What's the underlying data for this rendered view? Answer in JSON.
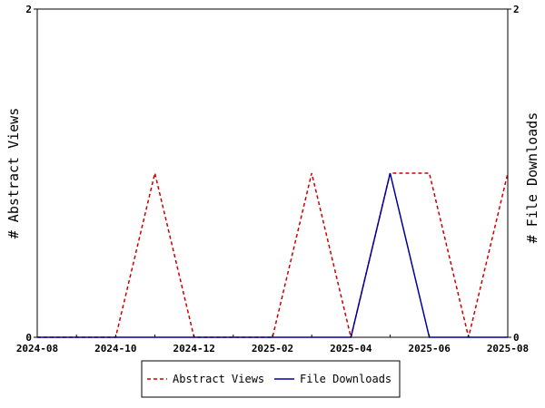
{
  "chart_data": {
    "type": "line",
    "title": "",
    "xlabel": "",
    "ylabel_left": "# Abstract Views",
    "ylabel_right": "# File Downloads",
    "x": [
      "2024-08",
      "2024-09",
      "2024-10",
      "2024-11",
      "2024-12",
      "2025-01",
      "2025-02",
      "2025-03",
      "2025-04",
      "2025-05",
      "2025-06",
      "2025-07",
      "2025-08"
    ],
    "x_tick_labels": [
      "2024-08",
      "2024-10",
      "2024-12",
      "2025-02",
      "2025-04",
      "2025-06",
      "2025-08"
    ],
    "ylim_left": [
      0,
      2
    ],
    "ylim_right": [
      0,
      2
    ],
    "y_tick_labels_left": [
      "0",
      "2"
    ],
    "y_tick_labels_right": [
      "0",
      "2"
    ],
    "grid": false,
    "legend_position": "bottom",
    "series": [
      {
        "name": "Abstract Views",
        "axis": "left",
        "color": "#cc0000",
        "style": "dashed",
        "values": [
          0,
          0,
          0,
          1,
          0,
          0,
          0,
          1,
          0,
          1,
          1,
          0,
          1
        ]
      },
      {
        "name": "File Downloads",
        "axis": "right",
        "color": "#000099",
        "style": "solid",
        "values": [
          0,
          0,
          0,
          0,
          0,
          0,
          0,
          0,
          0,
          1,
          0,
          0,
          0
        ]
      }
    ]
  }
}
